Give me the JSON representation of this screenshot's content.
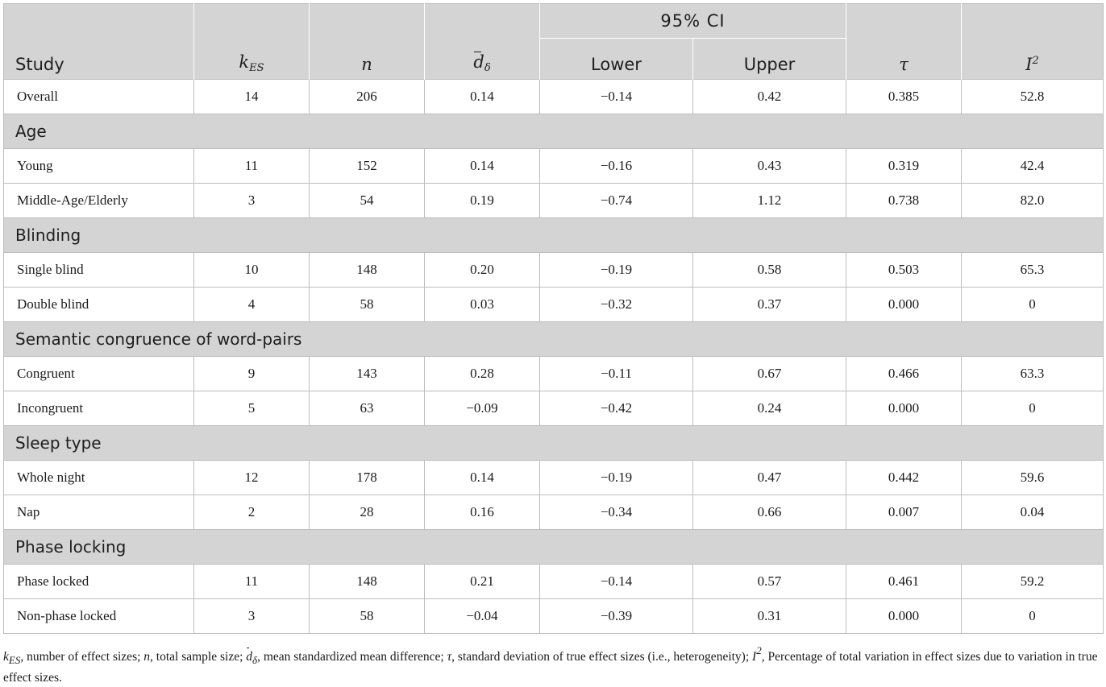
{
  "header": {
    "study": "Study",
    "k_es": "k",
    "k_es_sub": "ES",
    "n": "n",
    "d": "d",
    "d_sub": "δ",
    "ci": "95% CI",
    "lower": "Lower",
    "upper": "Upper",
    "tau": "τ",
    "i2": "I",
    "i2_sup": "2"
  },
  "overall": {
    "label": "Overall",
    "k": "14",
    "n": "206",
    "d": "0.14",
    "lower": "−0.14",
    "upper": "0.42",
    "tau": "0.385",
    "i2": "52.8"
  },
  "sections": [
    {
      "title": "Age",
      "rows": [
        {
          "label": "Young",
          "k": "11",
          "n": "152",
          "d": "0.14",
          "lower": "−0.16",
          "upper": "0.43",
          "tau": "0.319",
          "i2": "42.4"
        },
        {
          "label": "Middle-Age/Elderly",
          "k": "3",
          "n": "54",
          "d": "0.19",
          "lower": "−0.74",
          "upper": "1.12",
          "tau": "0.738",
          "i2": "82.0"
        }
      ]
    },
    {
      "title": "Blinding",
      "rows": [
        {
          "label": "Single blind",
          "k": "10",
          "n": "148",
          "d": "0.20",
          "lower": "−0.19",
          "upper": "0.58",
          "tau": "0.503",
          "i2": "65.3"
        },
        {
          "label": "Double blind",
          "k": "4",
          "n": "58",
          "d": "0.03",
          "lower": "−0.32",
          "upper": "0.37",
          "tau": "0.000",
          "i2": "0"
        }
      ]
    },
    {
      "title": "Semantic congruence of word-pairs",
      "rows": [
        {
          "label": "Congruent",
          "k": "9",
          "n": "143",
          "d": "0.28",
          "lower": "−0.11",
          "upper": "0.67",
          "tau": "0.466",
          "i2": "63.3"
        },
        {
          "label": "Incongruent",
          "k": "5",
          "n": "63",
          "d": "−0.09",
          "lower": "−0.42",
          "upper": "0.24",
          "tau": "0.000",
          "i2": "0"
        }
      ]
    },
    {
      "title": "Sleep type",
      "rows": [
        {
          "label": "Whole night",
          "k": "12",
          "n": "178",
          "d": "0.14",
          "lower": "−0.19",
          "upper": "0.47",
          "tau": "0.442",
          "i2": "59.6"
        },
        {
          "label": "Nap",
          "k": "2",
          "n": "28",
          "d": "0.16",
          "lower": "−0.34",
          "upper": "0.66",
          "tau": "0.007",
          "i2": "0.04"
        }
      ]
    },
    {
      "title": "Phase locking",
      "rows": [
        {
          "label": "Phase locked",
          "k": "11",
          "n": "148",
          "d": "0.21",
          "lower": "−0.14",
          "upper": "0.57",
          "tau": "0.461",
          "i2": "59.2"
        },
        {
          "label": "Non-phase locked",
          "k": "3",
          "n": "58",
          "d": "−0.04",
          "lower": "−0.39",
          "upper": "0.31",
          "tau": "0.000",
          "i2": "0"
        }
      ]
    }
  ],
  "footnote": {
    "k": "k",
    "k_sub": "ES",
    "t1": ", number of effect sizes; ",
    "n": "n",
    "t2": ", total sample size; ",
    "d": "d",
    "d_sub": "δ",
    "t3": ", mean standardized mean difference; ",
    "tau": "τ",
    "t4": ", standard deviation of true effect sizes (i.e., heterogeneity); ",
    "i": "I",
    "i_sup": "2",
    "t5": ", Percentage of total variation in effect sizes due to variation in true effect sizes."
  }
}
